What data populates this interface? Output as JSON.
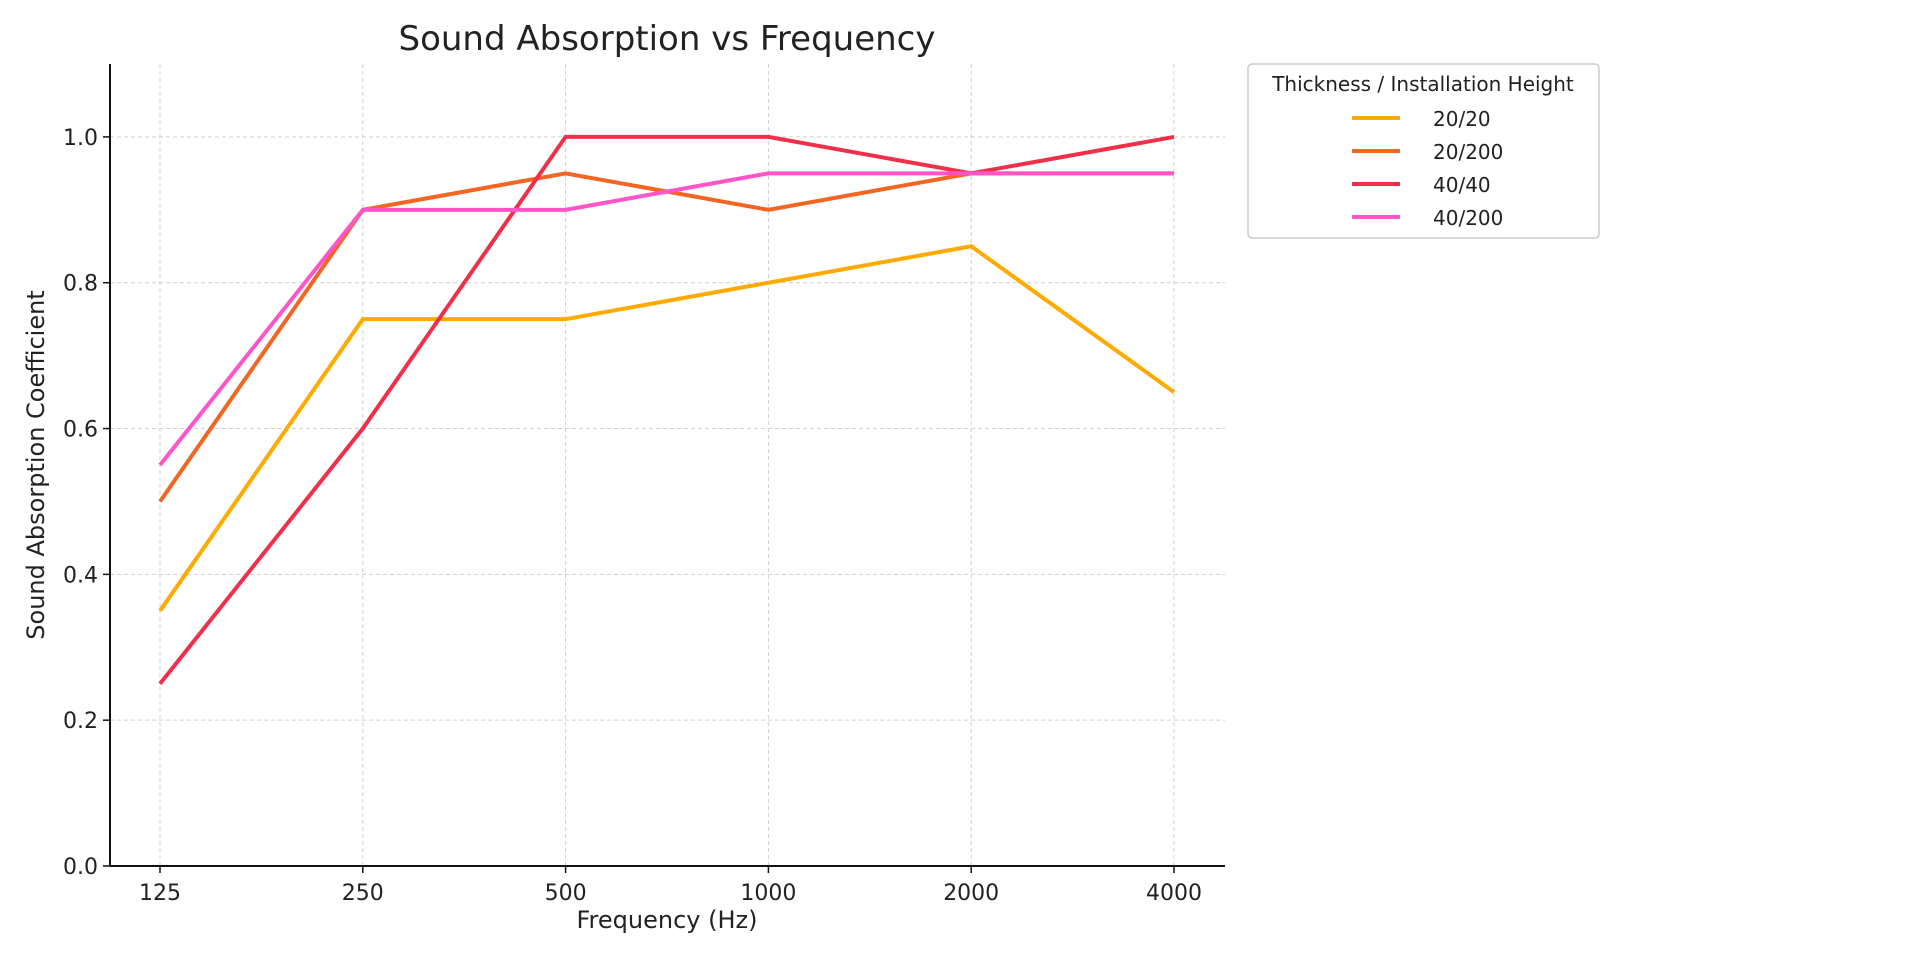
{
  "chart_data": {
    "type": "line",
    "title": "Sound Absorption vs Frequency",
    "xlabel": "Frequency (Hz)",
    "ylabel": "Sound Absorption Coefficient",
    "categories": [
      "125",
      "250",
      "500",
      "1000",
      "2000",
      "4000"
    ],
    "ylim": [
      0,
      1.1
    ],
    "yticks": [
      "0.0",
      "0.2",
      "0.4",
      "0.6",
      "0.8",
      "1.0"
    ],
    "grid": true,
    "legend": {
      "title": "Thickness / Installation Height",
      "placement": "outside-top-right"
    },
    "series": [
      {
        "name": "20/20",
        "color": "#FFAA00",
        "values": [
          0.35,
          0.75,
          0.75,
          0.8,
          0.85,
          0.65
        ]
      },
      {
        "name": "20/200",
        "color": "#F26522",
        "values": [
          0.5,
          0.9,
          0.95,
          0.9,
          0.95,
          0.95
        ]
      },
      {
        "name": "40/40",
        "color": "#F0304A",
        "values": [
          0.25,
          0.6,
          1.0,
          1.0,
          0.95,
          1.0
        ]
      },
      {
        "name": "40/200",
        "color": "#FF55C8",
        "values": [
          0.55,
          0.9,
          0.9,
          0.95,
          0.95,
          0.95
        ]
      }
    ]
  }
}
